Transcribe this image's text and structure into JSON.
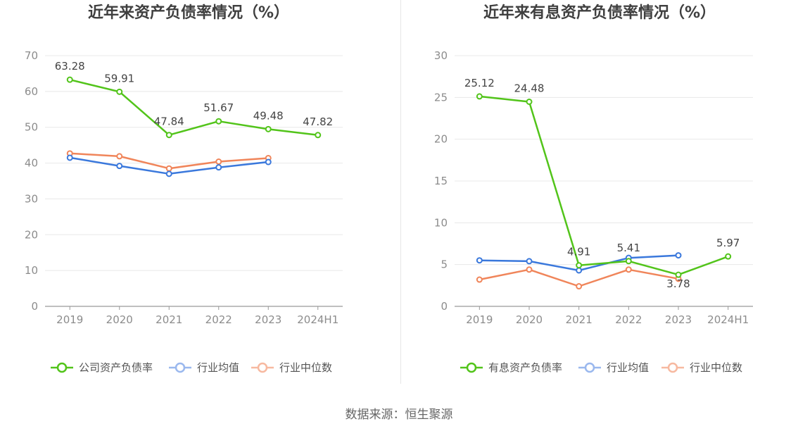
{
  "footer": {
    "source": "数据来源：恒生聚源"
  },
  "chart_data": [
    {
      "type": "line",
      "title": "近年来资产负债率情况（%）",
      "categories": [
        "2019",
        "2020",
        "2021",
        "2022",
        "2023",
        "2024H1"
      ],
      "ylim": [
        0,
        70
      ],
      "yticks": [
        0,
        10,
        20,
        30,
        40,
        50,
        60,
        70
      ],
      "grid": true,
      "legend_position": "bottom",
      "series": [
        {
          "name": "公司资产负债率",
          "color": "#52c41a",
          "labels": true,
          "values": [
            63.28,
            59.91,
            47.84,
            51.67,
            49.48,
            47.82
          ],
          "value_labels": [
            "63.28",
            "59.91",
            "47.84",
            "51.67",
            "49.48",
            "47.82"
          ]
        },
        {
          "name": "行业均值",
          "color": "#3a78dc",
          "labels": false,
          "values": [
            41.5,
            39.2,
            37.0,
            38.8,
            40.3,
            null
          ]
        },
        {
          "name": "行业中位数",
          "color": "#f0855a",
          "labels": false,
          "values": [
            42.7,
            41.9,
            38.5,
            40.4,
            41.4,
            null
          ]
        }
      ]
    },
    {
      "type": "line",
      "title": "近年来有息资产负债率情况（%）",
      "categories": [
        "2019",
        "2020",
        "2021",
        "2022",
        "2023",
        "2024H1"
      ],
      "ylim": [
        0,
        30
      ],
      "yticks": [
        0,
        5,
        10,
        15,
        20,
        25,
        30
      ],
      "grid": true,
      "legend_position": "bottom",
      "series": [
        {
          "name": "有息资产负债率",
          "color": "#52c41a",
          "labels": true,
          "values": [
            25.12,
            24.48,
            4.91,
            5.41,
            3.78,
            5.97
          ],
          "value_labels": [
            "25.12",
            "24.48",
            "4.91",
            "5.41",
            "3.78",
            "5.97"
          ]
        },
        {
          "name": "行业均值",
          "color": "#3a78dc",
          "labels": false,
          "values": [
            5.5,
            5.4,
            4.3,
            5.8,
            6.1,
            null
          ]
        },
        {
          "name": "行业中位数",
          "color": "#f0855a",
          "labels": false,
          "values": [
            3.2,
            4.4,
            2.4,
            4.4,
            3.3,
            null
          ]
        }
      ]
    }
  ]
}
